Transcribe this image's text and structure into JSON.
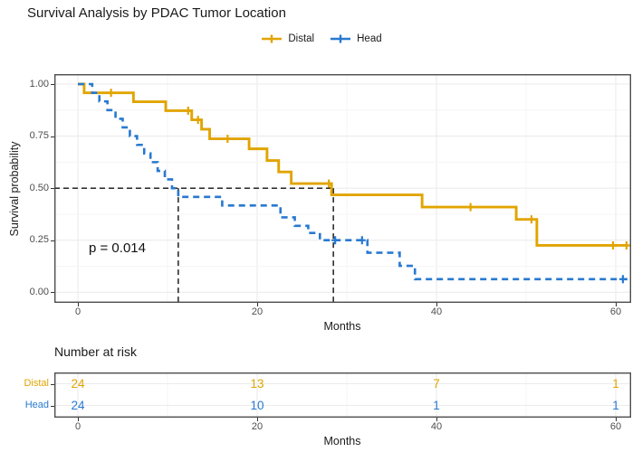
{
  "title": "Survival Analysis by PDAC Tumor Location",
  "p_value": "p = 0.014",
  "axes": {
    "ylabel": "Survival probability",
    "xlabel": "Months",
    "ytick_labels": [
      "0.00",
      "0.25",
      "0.50",
      "0.75",
      "1.00"
    ],
    "xtick_labels": [
      "0",
      "20",
      "40",
      "60"
    ]
  },
  "risk_table": {
    "title": "Number at risk",
    "xlabel": "Months",
    "months": [
      0,
      20,
      40,
      60
    ],
    "xtick_labels": [
      "0",
      "20",
      "40",
      "60"
    ],
    "rows": [
      {
        "name": "Distal",
        "color": "#E1A400",
        "counts": [
          "24",
          "13",
          "7",
          "1"
        ]
      },
      {
        "name": "Head",
        "color": "#2879D0",
        "counts": [
          "24",
          "10",
          "1",
          "1"
        ]
      }
    ]
  },
  "chart_data": {
    "type": "line",
    "subtype": "kaplan-meier-step",
    "title": "Survival Analysis by PDAC Tumor Location",
    "xlabel": "Months",
    "ylabel": "Survival probability",
    "xlim": [
      -2.6,
      61.7
    ],
    "ylim": [
      0,
      1.0
    ],
    "xticks": [
      0,
      20,
      40,
      60
    ],
    "xticks_minor": [
      10,
      30,
      50
    ],
    "yticks": [
      0,
      0.25,
      0.5,
      0.75,
      1.0
    ],
    "yticks_minor": [
      0.125,
      0.375,
      0.625,
      0.875
    ],
    "grid": "on",
    "legend_position": "top",
    "annotations": {
      "p_value_text": "p = 0.014",
      "median_guides": {
        "y": 0.5,
        "head_median_months": 11.2,
        "distal_median_months": 28.5
      }
    },
    "series": [
      {
        "name": "Distal",
        "color": "#E1A400",
        "dash": "solid",
        "steps": [
          [
            0,
            1.0
          ],
          [
            0.7,
            0.958
          ],
          [
            6.2,
            0.915
          ],
          [
            9.8,
            0.872
          ],
          [
            12.7,
            0.828
          ],
          [
            13.8,
            0.783
          ],
          [
            14.7,
            0.737
          ],
          [
            19.1,
            0.689
          ],
          [
            21.1,
            0.633
          ],
          [
            22.4,
            0.578
          ],
          [
            23.8,
            0.522
          ],
          [
            28.3,
            0.468
          ],
          [
            38.4,
            0.409
          ],
          [
            48.9,
            0.35
          ],
          [
            51.2,
            0.225
          ],
          [
            61.4,
            0.225
          ]
        ],
        "censors": [
          [
            3.7,
            0.958
          ],
          [
            12.3,
            0.872
          ],
          [
            13.4,
            0.828
          ],
          [
            16.7,
            0.737
          ],
          [
            28.0,
            0.522
          ],
          [
            43.8,
            0.409
          ],
          [
            50.6,
            0.35
          ],
          [
            59.7,
            0.225
          ],
          [
            61.2,
            0.225
          ]
        ]
      },
      {
        "name": "Head",
        "color": "#2879D0",
        "dash": "dashed",
        "steps": [
          [
            0,
            1.0
          ],
          [
            1.6,
            0.958
          ],
          [
            2.4,
            0.917
          ],
          [
            3.3,
            0.875
          ],
          [
            4.2,
            0.833
          ],
          [
            5.0,
            0.792
          ],
          [
            5.8,
            0.75
          ],
          [
            6.6,
            0.708
          ],
          [
            7.4,
            0.667
          ],
          [
            8.1,
            0.625
          ],
          [
            8.9,
            0.583
          ],
          [
            9.7,
            0.542
          ],
          [
            10.5,
            0.5
          ],
          [
            11.2,
            0.458
          ],
          [
            16.1,
            0.417
          ],
          [
            22.6,
            0.36
          ],
          [
            24.2,
            0.319
          ],
          [
            25.7,
            0.285
          ],
          [
            27.0,
            0.25
          ],
          [
            32.3,
            0.19
          ],
          [
            35.9,
            0.127
          ],
          [
            37.6,
            0.063
          ],
          [
            61.3,
            0.063
          ]
        ],
        "censors": [
          [
            28.7,
            0.25
          ],
          [
            31.7,
            0.25
          ],
          [
            60.8,
            0.063
          ]
        ]
      }
    ]
  }
}
